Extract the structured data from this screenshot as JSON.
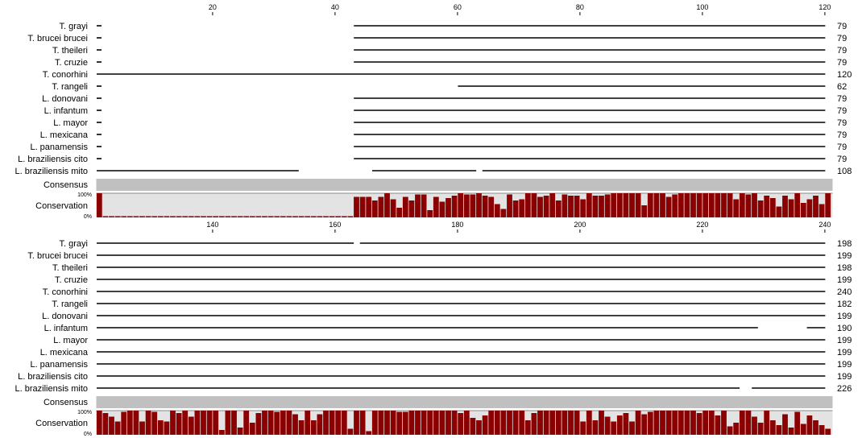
{
  "alignment": {
    "colors": {
      "seq_line": "#000000",
      "consensus_bar": "#c0c0c0",
      "conservation_bg": "#e3e3e3",
      "conservation_bar": "#8b0000"
    },
    "blocks": [
      {
        "start": 1,
        "end": 120,
        "ticks": [
          20,
          40,
          60,
          80,
          100,
          120
        ],
        "rows": [
          {
            "name": "T. grayi",
            "end_count": "79",
            "segments": [
              [
                1,
                1
              ],
              [
                43,
                120
              ]
            ]
          },
          {
            "name": "T. brucei brucei",
            "end_count": "79",
            "segments": [
              [
                1,
                1
              ],
              [
                43,
                120
              ]
            ]
          },
          {
            "name": "T. theileri",
            "end_count": "79",
            "segments": [
              [
                1,
                1
              ],
              [
                43,
                120
              ]
            ]
          },
          {
            "name": "T. cruzie",
            "end_count": "79",
            "segments": [
              [
                1,
                1
              ],
              [
                43,
                120
              ]
            ]
          },
          {
            "name": "T. conorhini",
            "end_count": "120",
            "segments": [
              [
                1,
                120
              ]
            ]
          },
          {
            "name": "T. rangeli",
            "end_count": "62",
            "segments": [
              [
                1,
                1
              ],
              [
                60,
                120
              ]
            ]
          },
          {
            "name": "L. donovani",
            "end_count": "79",
            "segments": [
              [
                1,
                1
              ],
              [
                43,
                120
              ]
            ]
          },
          {
            "name": "L. infantum",
            "end_count": "79",
            "segments": [
              [
                1,
                1
              ],
              [
                43,
                120
              ]
            ]
          },
          {
            "name": "L. mayor",
            "end_count": "79",
            "segments": [
              [
                1,
                1
              ],
              [
                43,
                120
              ]
            ]
          },
          {
            "name": "L. mexicana",
            "end_count": "79",
            "segments": [
              [
                1,
                1
              ],
              [
                43,
                120
              ]
            ]
          },
          {
            "name": "L. panamensis",
            "end_count": "79",
            "segments": [
              [
                1,
                1
              ],
              [
                43,
                120
              ]
            ]
          },
          {
            "name": "L. braziliensis cito",
            "end_count": "79",
            "segments": [
              [
                1,
                1
              ],
              [
                43,
                120
              ]
            ]
          },
          {
            "name": "L. braziliensis mito",
            "end_count": "108",
            "segments": [
              [
                1,
                34
              ],
              [
                46,
                63
              ],
              [
                64,
                120
              ]
            ]
          }
        ],
        "consensus_label": "Consensus",
        "conservation_label": "Conservation",
        "pct_top": "100%",
        "pct_bottom": "0%",
        "conservation": [
          100,
          5,
          5,
          5,
          5,
          5,
          5,
          5,
          5,
          5,
          5,
          5,
          5,
          5,
          5,
          5,
          5,
          5,
          5,
          5,
          5,
          5,
          5,
          5,
          5,
          5,
          5,
          5,
          5,
          5,
          5,
          5,
          5,
          5,
          5,
          5,
          5,
          5,
          5,
          5,
          5,
          5,
          85,
          85,
          85,
          70,
          85,
          100,
          75,
          40,
          85,
          70,
          95,
          95,
          30,
          85,
          65,
          80,
          90,
          100,
          95,
          95,
          100,
          90,
          85,
          55,
          35,
          95,
          70,
          75,
          100,
          100,
          85,
          90,
          100,
          70,
          95,
          90,
          90,
          75,
          100,
          90,
          90,
          95,
          100,
          100,
          100,
          100,
          100,
          50,
          100,
          100,
          100,
          85,
          95,
          100,
          100,
          100,
          100,
          100,
          100,
          100,
          100,
          100,
          75,
          100,
          95,
          100,
          70,
          90,
          80,
          45,
          90,
          75,
          100,
          60,
          75,
          90,
          55,
          100
        ]
      },
      {
        "start": 121,
        "end": 240,
        "ticks": [
          140,
          160,
          180,
          200,
          220,
          240
        ],
        "rows": [
          {
            "name": "T. grayi",
            "end_count": "198",
            "segments": [
              [
                121,
                163
              ],
              [
                164,
                240
              ]
            ]
          },
          {
            "name": "T. brucei brucei",
            "end_count": "199",
            "segments": [
              [
                121,
                240
              ]
            ]
          },
          {
            "name": "T. theileri",
            "end_count": "198",
            "segments": [
              [
                121,
                240
              ]
            ]
          },
          {
            "name": "T. cruzie",
            "end_count": "199",
            "segments": [
              [
                121,
                240
              ]
            ]
          },
          {
            "name": "T. conorhini",
            "end_count": "240",
            "segments": [
              [
                121,
                240
              ]
            ]
          },
          {
            "name": "T. rangeli",
            "end_count": "182",
            "segments": [
              [
                121,
                240
              ]
            ]
          },
          {
            "name": "L. donovani",
            "end_count": "199",
            "segments": [
              [
                121,
                240
              ]
            ]
          },
          {
            "name": "L. infantum",
            "end_count": "190",
            "segments": [
              [
                121,
                229
              ],
              [
                237,
                240
              ]
            ]
          },
          {
            "name": "L. mayor",
            "end_count": "199",
            "segments": [
              [
                121,
                240
              ]
            ]
          },
          {
            "name": "L. mexicana",
            "end_count": "199",
            "segments": [
              [
                121,
                240
              ]
            ]
          },
          {
            "name": "L. panamensis",
            "end_count": "199",
            "segments": [
              [
                121,
                240
              ]
            ]
          },
          {
            "name": "L. braziliensis cito",
            "end_count": "199",
            "segments": [
              [
                121,
                240
              ]
            ]
          },
          {
            "name": "L. braziliensis mito",
            "end_count": "226",
            "segments": [
              [
                121,
                226
              ],
              [
                228,
                240
              ]
            ]
          }
        ],
        "consensus_label": "Consensus",
        "conservation_label": "Conservation",
        "pct_top": "100%",
        "pct_bottom": "0%",
        "conservation": [
          100,
          90,
          75,
          55,
          95,
          100,
          100,
          55,
          100,
          95,
          60,
          55,
          100,
          90,
          100,
          75,
          100,
          100,
          100,
          100,
          20,
          100,
          100,
          30,
          100,
          50,
          90,
          100,
          100,
          95,
          100,
          100,
          85,
          60,
          100,
          60,
          85,
          100,
          100,
          100,
          100,
          25,
          100,
          100,
          15,
          100,
          100,
          100,
          100,
          95,
          95,
          100,
          100,
          100,
          100,
          100,
          100,
          100,
          100,
          90,
          100,
          70,
          60,
          80,
          100,
          100,
          100,
          100,
          100,
          100,
          60,
          90,
          100,
          100,
          100,
          100,
          100,
          100,
          100,
          55,
          100,
          60,
          100,
          75,
          55,
          80,
          90,
          55,
          100,
          85,
          95,
          100,
          100,
          100,
          100,
          100,
          100,
          100,
          90,
          100,
          100,
          80,
          100,
          35,
          50,
          100,
          100,
          75,
          50,
          100,
          60,
          40,
          85,
          30,
          95,
          45,
          80,
          60,
          40,
          25
        ]
      }
    ]
  }
}
